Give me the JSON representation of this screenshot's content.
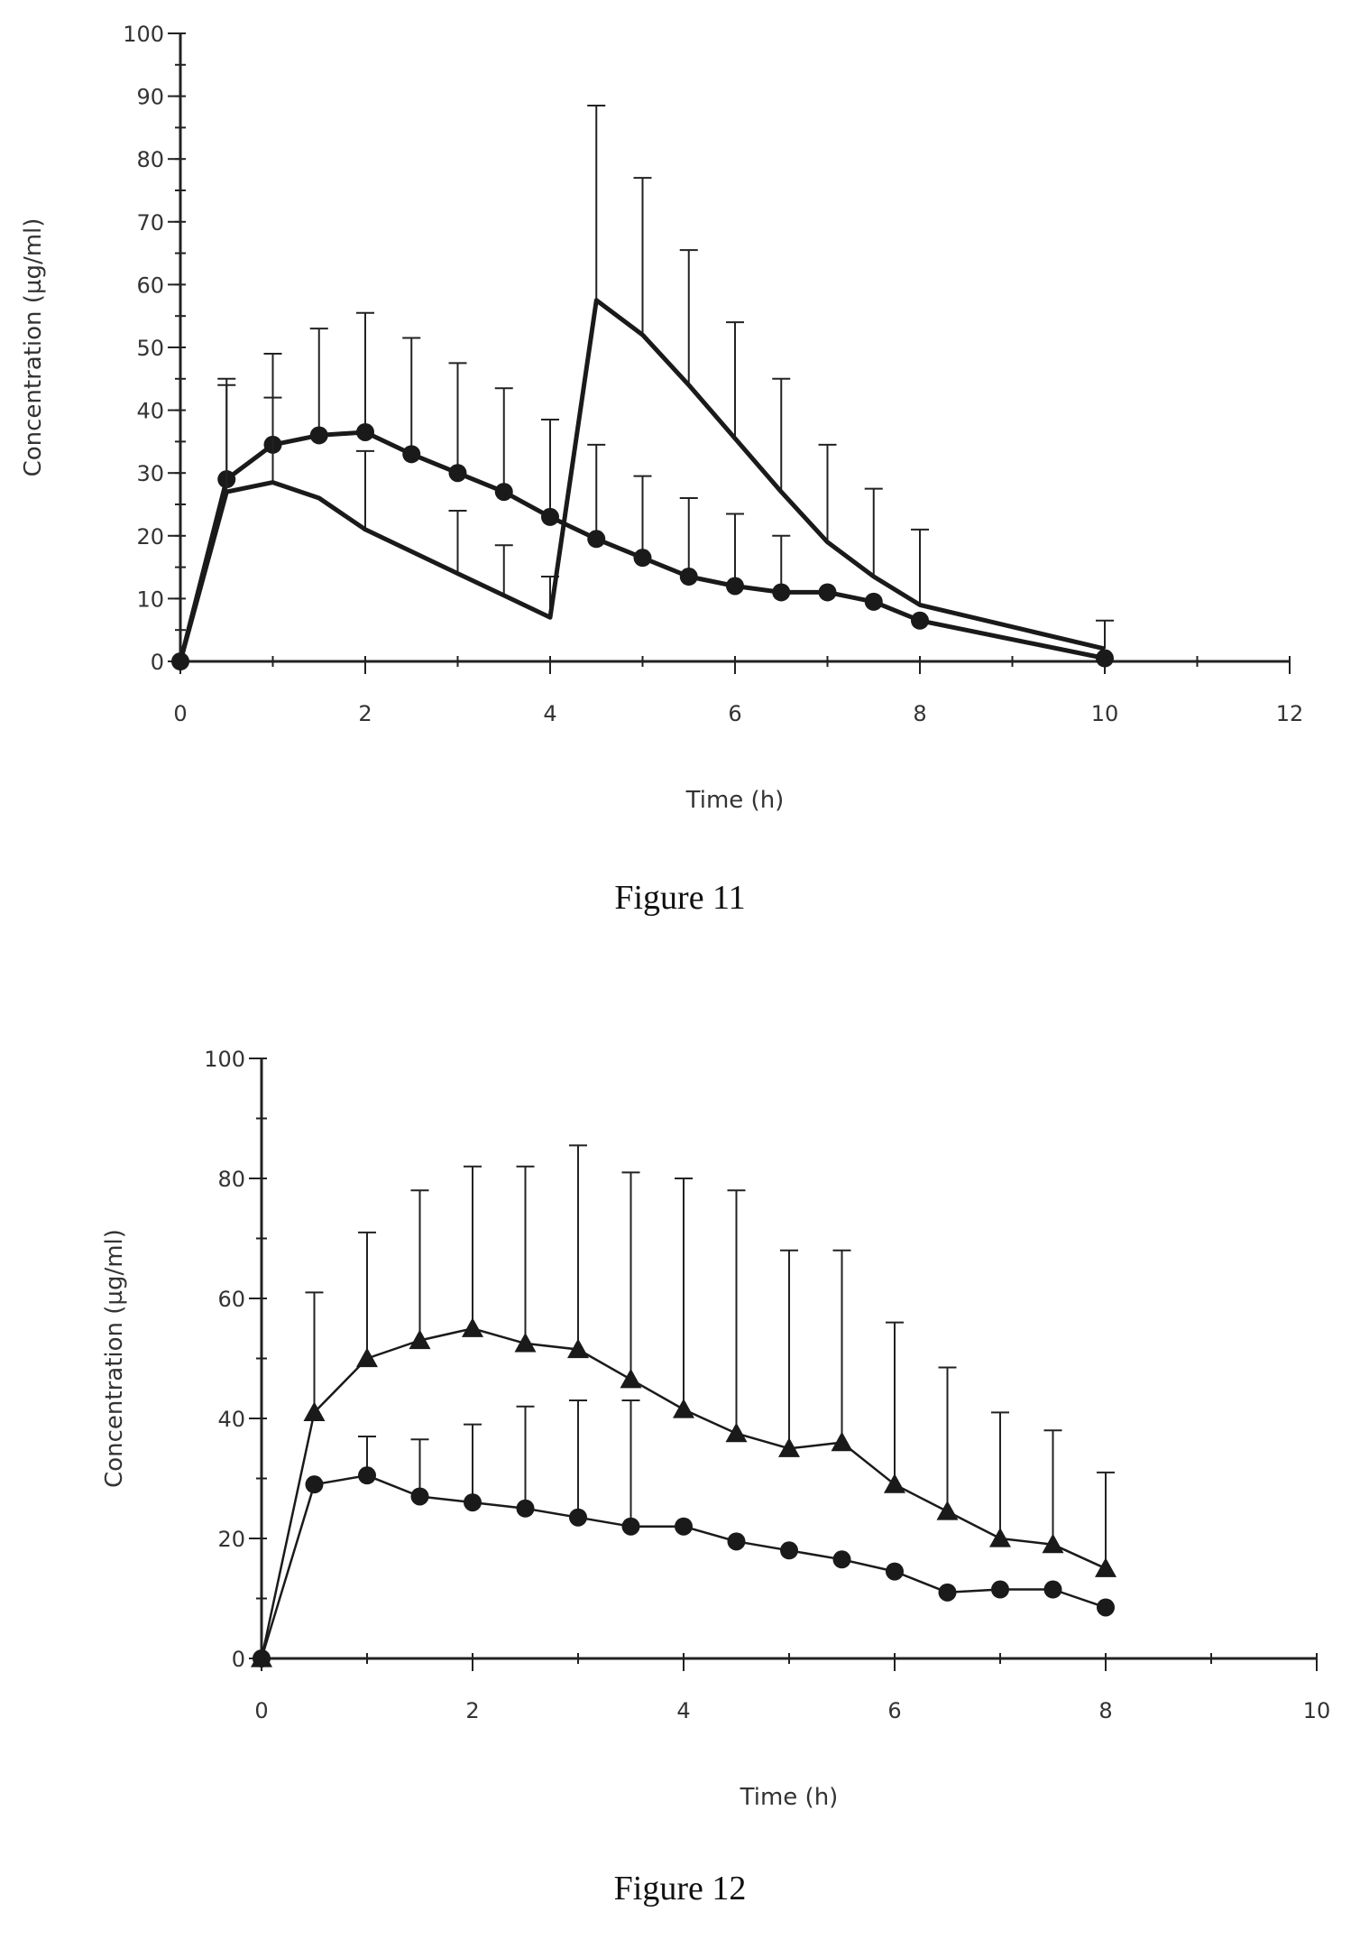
{
  "chart_data": [
    {
      "type": "line",
      "caption": "Figure 11",
      "xlabel": "Time (h)",
      "ylabel": "Concentration (µg/ml)",
      "xlim": [
        0,
        12
      ],
      "ylim": [
        0,
        100
      ],
      "xticks": [
        0,
        2,
        4,
        6,
        8,
        10,
        12
      ],
      "yticks": [
        0,
        10,
        20,
        30,
        40,
        50,
        60,
        70,
        80,
        90,
        100
      ],
      "grid": false,
      "series": [
        {
          "marker": "circle",
          "line_width": "thick",
          "points": [
            {
              "x": 0,
              "y": 0,
              "err": 0
            },
            {
              "x": 0.5,
              "y": 29,
              "err": 16
            },
            {
              "x": 1,
              "y": 34.5,
              "err": 14.5
            },
            {
              "x": 1.5,
              "y": 36,
              "err": 17
            },
            {
              "x": 2,
              "y": 36.5,
              "err": 19
            },
            {
              "x": 2.5,
              "y": 33,
              "err": 18.5
            },
            {
              "x": 3,
              "y": 30,
              "err": 17.5
            },
            {
              "x": 3.5,
              "y": 27,
              "err": 16.5
            },
            {
              "x": 4,
              "y": 23,
              "err": 15.5
            },
            {
              "x": 4.5,
              "y": 19.5,
              "err": 15
            },
            {
              "x": 5,
              "y": 16.5,
              "err": 13
            },
            {
              "x": 5.5,
              "y": 13.5,
              "err": 12.5
            },
            {
              "x": 6,
              "y": 12,
              "err": 11.5
            },
            {
              "x": 6.5,
              "y": 11,
              "err": 9
            },
            {
              "x": 7,
              "y": 11,
              "err": 0
            },
            {
              "x": 7.5,
              "y": 9.5,
              "err": 0
            },
            {
              "x": 8,
              "y": 6.5,
              "err": 0
            },
            {
              "x": 10,
              "y": 0.5,
              "err": 0
            }
          ]
        },
        {
          "marker": "none",
          "line_width": "thick",
          "points": [
            {
              "x": 0,
              "y": 0,
              "err": 0
            },
            {
              "x": 0.5,
              "y": 27,
              "err": 17
            },
            {
              "x": 1,
              "y": 28.5,
              "err": 13.5
            },
            {
              "x": 1.5,
              "y": 26,
              "err": 0
            },
            {
              "x": 2,
              "y": 21,
              "err": 12.5
            },
            {
              "x": 3,
              "y": 14,
              "err": 10
            },
            {
              "x": 3.5,
              "y": 10.5,
              "err": 8
            },
            {
              "x": 4,
              "y": 7,
              "err": 6.5
            },
            {
              "x": 4.5,
              "y": 57.5,
              "err": 31
            },
            {
              "x": 5,
              "y": 52,
              "err": 25
            },
            {
              "x": 5.5,
              "y": 44,
              "err": 21.5
            },
            {
              "x": 6,
              "y": 35.5,
              "err": 18.5
            },
            {
              "x": 6.5,
              "y": 27,
              "err": 18
            },
            {
              "x": 7,
              "y": 19,
              "err": 15.5
            },
            {
              "x": 7.5,
              "y": 13.5,
              "err": 14
            },
            {
              "x": 8,
              "y": 9,
              "err": 12
            },
            {
              "x": 10,
              "y": 2,
              "err": 4.5
            }
          ]
        }
      ]
    },
    {
      "type": "line",
      "caption": "Figure 12",
      "xlabel": "Time (h)",
      "ylabel": "Concentration (µg/ml)",
      "xlim": [
        0,
        10
      ],
      "ylim": [
        0,
        100
      ],
      "xticks": [
        0,
        2,
        4,
        6,
        8,
        10
      ],
      "yticks": [
        0,
        20,
        40,
        60,
        80,
        100
      ],
      "grid": false,
      "series": [
        {
          "marker": "triangle",
          "line_width": "thin",
          "points": [
            {
              "x": 0,
              "y": 0,
              "err": 0
            },
            {
              "x": 0.5,
              "y": 41,
              "err": 20
            },
            {
              "x": 1,
              "y": 50,
              "err": 21
            },
            {
              "x": 1.5,
              "y": 53,
              "err": 25
            },
            {
              "x": 2,
              "y": 55,
              "err": 27
            },
            {
              "x": 2.5,
              "y": 52.5,
              "err": 29.5
            },
            {
              "x": 3,
              "y": 51.5,
              "err": 34
            },
            {
              "x": 3.5,
              "y": 46.5,
              "err": 34.5
            },
            {
              "x": 4,
              "y": 41.5,
              "err": 38.5
            },
            {
              "x": 4.5,
              "y": 37.5,
              "err": 40.5
            },
            {
              "x": 5,
              "y": 35,
              "err": 33
            },
            {
              "x": 5.5,
              "y": 36,
              "err": 32
            },
            {
              "x": 6,
              "y": 29,
              "err": 27
            },
            {
              "x": 6.5,
              "y": 24.5,
              "err": 24
            },
            {
              "x": 7,
              "y": 20,
              "err": 21
            },
            {
              "x": 7.5,
              "y": 19,
              "err": 19
            },
            {
              "x": 8,
              "y": 15,
              "err": 16
            }
          ]
        },
        {
          "marker": "circle",
          "line_width": "thin",
          "points": [
            {
              "x": 0,
              "y": 0,
              "err": 0
            },
            {
              "x": 0.5,
              "y": 29,
              "err": 0
            },
            {
              "x": 1,
              "y": 30.5,
              "err": 6.5
            },
            {
              "x": 1.5,
              "y": 27,
              "err": 9.5
            },
            {
              "x": 2,
              "y": 26,
              "err": 13
            },
            {
              "x": 2.5,
              "y": 25,
              "err": 17
            },
            {
              "x": 3,
              "y": 23.5,
              "err": 19.5
            },
            {
              "x": 3.5,
              "y": 22,
              "err": 21
            },
            {
              "x": 4,
              "y": 22,
              "err": 0
            },
            {
              "x": 4.5,
              "y": 19.5,
              "err": 0
            },
            {
              "x": 5,
              "y": 18,
              "err": 0
            },
            {
              "x": 5.5,
              "y": 16.5,
              "err": 0
            },
            {
              "x": 6,
              "y": 14.5,
              "err": 0
            },
            {
              "x": 6.5,
              "y": 11,
              "err": 0
            },
            {
              "x": 7,
              "y": 11.5,
              "err": 0
            },
            {
              "x": 7.5,
              "y": 11.5,
              "err": 0
            },
            {
              "x": 8,
              "y": 8.5,
              "err": 0
            }
          ]
        }
      ]
    }
  ]
}
